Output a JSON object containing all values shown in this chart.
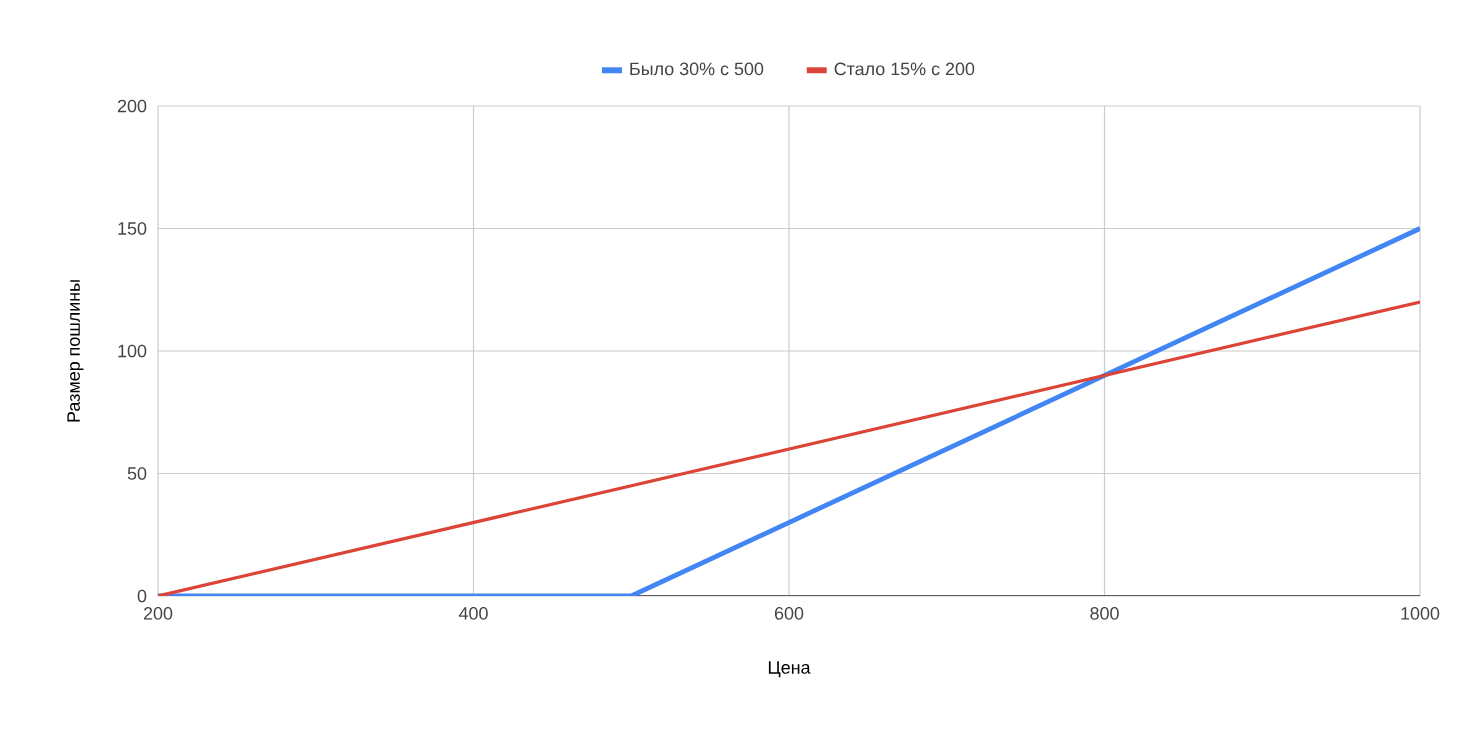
{
  "chart_data": {
    "type": "line",
    "xlabel": "Цена",
    "ylabel": "Размер пошлины",
    "xlim": [
      200,
      1000
    ],
    "xticks": [
      200,
      400,
      600,
      800,
      1000
    ],
    "ylim": [
      0,
      200
    ],
    "yticks": [
      0,
      50,
      100,
      150,
      200
    ],
    "grid": true,
    "legend": "top",
    "marker": "none",
    "line_style": "solid",
    "series": [
      {
        "name": "Было 30% с 500",
        "color": "#4285f4",
        "x": [
          200,
          500,
          1000
        ],
        "values": [
          0,
          0,
          150
        ]
      },
      {
        "name": "Стало 15% с 200",
        "color": "#db4437",
        "x": [
          200,
          1000
        ],
        "values": [
          0,
          120
        ]
      }
    ]
  }
}
